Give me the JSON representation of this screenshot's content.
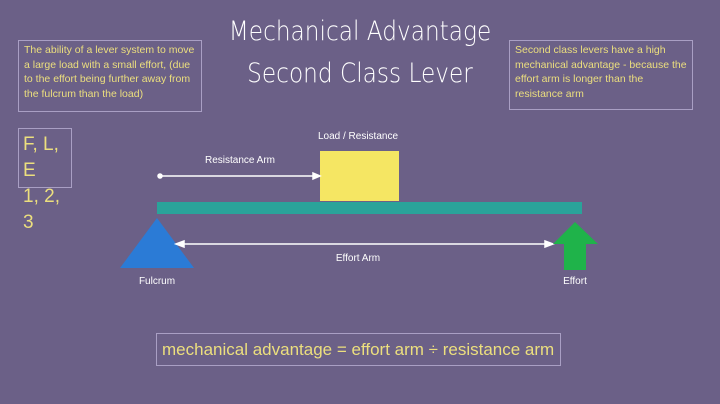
{
  "title_line1": "Mechanical Advantage",
  "title_line2": "Second Class Lever",
  "definition": "The ability of a lever system to move a large load with a small effort, (due to the effort being further away from the fulcrum than the load)",
  "order_box": {
    "line1": "F, L, E",
    "line2": "1, 2, 3"
  },
  "note": "Second class levers have a high mechanical advantage - because the effort arm is longer than the resistance arm",
  "diagram": {
    "load_label": "Load / Resistance",
    "resistance_arm_label": "Resistance Arm",
    "effort_arm_label": "Effort Arm",
    "fulcrum_label": "Fulcrum",
    "effort_label": "Effort"
  },
  "formula": "mechanical advantage = effort arm ÷ resistance arm",
  "colors": {
    "background": "#6b6087",
    "text_accent": "#ecdf7e",
    "load": "#f5e663",
    "beam": "#2aa39a",
    "fulcrum": "#2b7bd6",
    "effort": "#1fb34a"
  }
}
